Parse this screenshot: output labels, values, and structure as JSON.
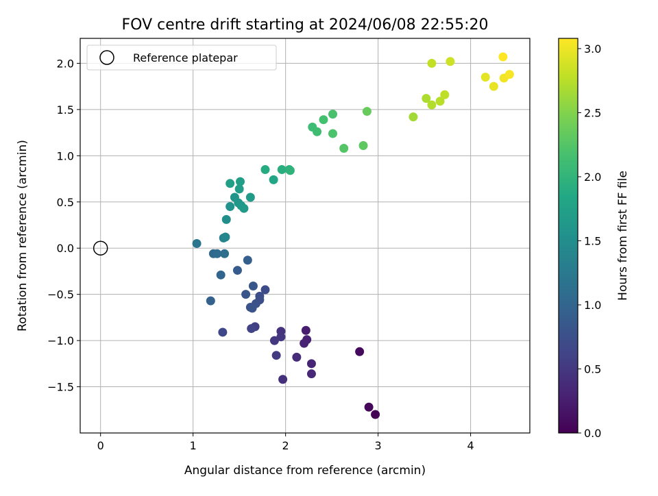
{
  "chart_data": {
    "type": "scatter",
    "title": "FOV centre drift starting at 2024/06/08 22:55:20",
    "xlabel": "Angular distance from reference (arcmin)",
    "ylabel": "Rotation from reference (arcmin)",
    "xlim": [
      -0.22,
      4.64
    ],
    "ylim": [
      -2.0,
      2.27
    ],
    "xticks": [
      0,
      1,
      2,
      3,
      4
    ],
    "xtick_labels": [
      "0",
      "1",
      "2",
      "3",
      "4"
    ],
    "yticks": [
      2.0,
      1.5,
      1.0,
      0.5,
      0.0,
      -0.5,
      -1.0,
      -1.5
    ],
    "ytick_labels": [
      "2.0",
      "1.5",
      "1.0",
      "0.5",
      "0.0",
      "−0.5",
      "−1.0",
      "−1.5"
    ],
    "grid": true,
    "legend": {
      "position": "upper-left",
      "entries": [
        "Reference platepar"
      ]
    },
    "reference_point": {
      "x": 0,
      "y": 0,
      "label": "Reference platepar"
    },
    "colorbar": {
      "label": "Hours from first FF file",
      "colormap": "viridis",
      "range": [
        0.0,
        3.08
      ],
      "ticks": [
        0.0,
        0.5,
        1.0,
        1.5,
        2.0,
        2.5,
        3.0
      ],
      "tick_labels": [
        "0.0",
        "0.5",
        "1.0",
        "1.5",
        "2.0",
        "2.5",
        "3.0"
      ]
    },
    "points": [
      {
        "x": 2.97,
        "y": -1.8,
        "h": 0.0
      },
      {
        "x": 2.9,
        "y": -1.72,
        "h": 0.05
      },
      {
        "x": 2.8,
        "y": -1.12,
        "h": 0.08
      },
      {
        "x": 2.22,
        "y": -0.89,
        "h": 0.25
      },
      {
        "x": 2.23,
        "y": -0.99,
        "h": 0.28
      },
      {
        "x": 2.2,
        "y": -1.03,
        "h": 0.3
      },
      {
        "x": 2.28,
        "y": -1.25,
        "h": 0.33
      },
      {
        "x": 2.28,
        "y": -1.36,
        "h": 0.36
      },
      {
        "x": 2.12,
        "y": -1.18,
        "h": 0.38
      },
      {
        "x": 1.97,
        "y": -1.42,
        "h": 0.42
      },
      {
        "x": 1.95,
        "y": -0.9,
        "h": 0.45
      },
      {
        "x": 1.95,
        "y": -0.96,
        "h": 0.48
      },
      {
        "x": 1.88,
        "y": -1.0,
        "h": 0.5
      },
      {
        "x": 1.9,
        "y": -1.16,
        "h": 0.52
      },
      {
        "x": 1.67,
        "y": -0.85,
        "h": 0.58
      },
      {
        "x": 1.63,
        "y": -0.87,
        "h": 0.62
      },
      {
        "x": 1.32,
        "y": -0.91,
        "h": 0.65
      },
      {
        "x": 1.78,
        "y": -0.45,
        "h": 0.7
      },
      {
        "x": 1.72,
        "y": -0.52,
        "h": 0.72
      },
      {
        "x": 1.72,
        "y": -0.56,
        "h": 0.74
      },
      {
        "x": 1.68,
        "y": -0.6,
        "h": 0.76
      },
      {
        "x": 1.62,
        "y": -0.64,
        "h": 0.78
      },
      {
        "x": 1.64,
        "y": -0.65,
        "h": 0.8
      },
      {
        "x": 1.57,
        "y": -0.5,
        "h": 0.82
      },
      {
        "x": 1.65,
        "y": -0.41,
        "h": 0.84
      },
      {
        "x": 1.48,
        "y": -0.24,
        "h": 0.88
      },
      {
        "x": 1.59,
        "y": -0.13,
        "h": 0.92
      },
      {
        "x": 1.19,
        "y": -0.57,
        "h": 0.96
      },
      {
        "x": 1.3,
        "y": -0.29,
        "h": 1.0
      },
      {
        "x": 1.22,
        "y": -0.06,
        "h": 1.05
      },
      {
        "x": 1.26,
        "y": -0.06,
        "h": 1.08
      },
      {
        "x": 1.34,
        "y": -0.06,
        "h": 1.12
      },
      {
        "x": 1.04,
        "y": 0.05,
        "h": 1.2
      },
      {
        "x": 1.33,
        "y": 0.11,
        "h": 1.35
      },
      {
        "x": 1.35,
        "y": 0.12,
        "h": 1.4
      },
      {
        "x": 1.36,
        "y": 0.31,
        "h": 1.5
      },
      {
        "x": 1.4,
        "y": 0.45,
        "h": 1.55
      },
      {
        "x": 1.45,
        "y": 0.55,
        "h": 1.6
      },
      {
        "x": 1.49,
        "y": 0.49,
        "h": 1.62
      },
      {
        "x": 1.52,
        "y": 0.46,
        "h": 1.64
      },
      {
        "x": 1.55,
        "y": 0.43,
        "h": 1.66
      },
      {
        "x": 1.62,
        "y": 0.55,
        "h": 1.68
      },
      {
        "x": 1.5,
        "y": 0.64,
        "h": 1.7
      },
      {
        "x": 1.51,
        "y": 0.72,
        "h": 1.72
      },
      {
        "x": 1.4,
        "y": 0.7,
        "h": 1.74
      },
      {
        "x": 1.87,
        "y": 0.74,
        "h": 1.82
      },
      {
        "x": 1.78,
        "y": 0.85,
        "h": 1.88
      },
      {
        "x": 1.96,
        "y": 0.85,
        "h": 1.92
      },
      {
        "x": 2.04,
        "y": 0.85,
        "h": 1.95
      },
      {
        "x": 2.05,
        "y": 0.84,
        "h": 1.98
      },
      {
        "x": 2.29,
        "y": 1.31,
        "h": 2.1
      },
      {
        "x": 2.34,
        "y": 1.26,
        "h": 2.12
      },
      {
        "x": 2.41,
        "y": 1.39,
        "h": 2.15
      },
      {
        "x": 2.51,
        "y": 1.45,
        "h": 2.18
      },
      {
        "x": 2.51,
        "y": 1.24,
        "h": 2.2
      },
      {
        "x": 2.63,
        "y": 1.08,
        "h": 2.25
      },
      {
        "x": 2.84,
        "y": 1.11,
        "h": 2.3
      },
      {
        "x": 2.88,
        "y": 1.48,
        "h": 2.35
      },
      {
        "x": 3.38,
        "y": 1.42,
        "h": 2.65
      },
      {
        "x": 3.52,
        "y": 1.62,
        "h": 2.7
      },
      {
        "x": 3.58,
        "y": 1.55,
        "h": 2.72
      },
      {
        "x": 3.67,
        "y": 1.59,
        "h": 2.75
      },
      {
        "x": 3.72,
        "y": 1.66,
        "h": 2.78
      },
      {
        "x": 3.58,
        "y": 2.0,
        "h": 2.8
      },
      {
        "x": 3.78,
        "y": 2.02,
        "h": 2.85
      },
      {
        "x": 4.16,
        "y": 1.85,
        "h": 2.95
      },
      {
        "x": 4.25,
        "y": 1.75,
        "h": 2.98
      },
      {
        "x": 4.36,
        "y": 1.84,
        "h": 3.02
      },
      {
        "x": 4.42,
        "y": 1.88,
        "h": 3.05
      },
      {
        "x": 4.35,
        "y": 2.07,
        "h": 3.08
      }
    ]
  }
}
